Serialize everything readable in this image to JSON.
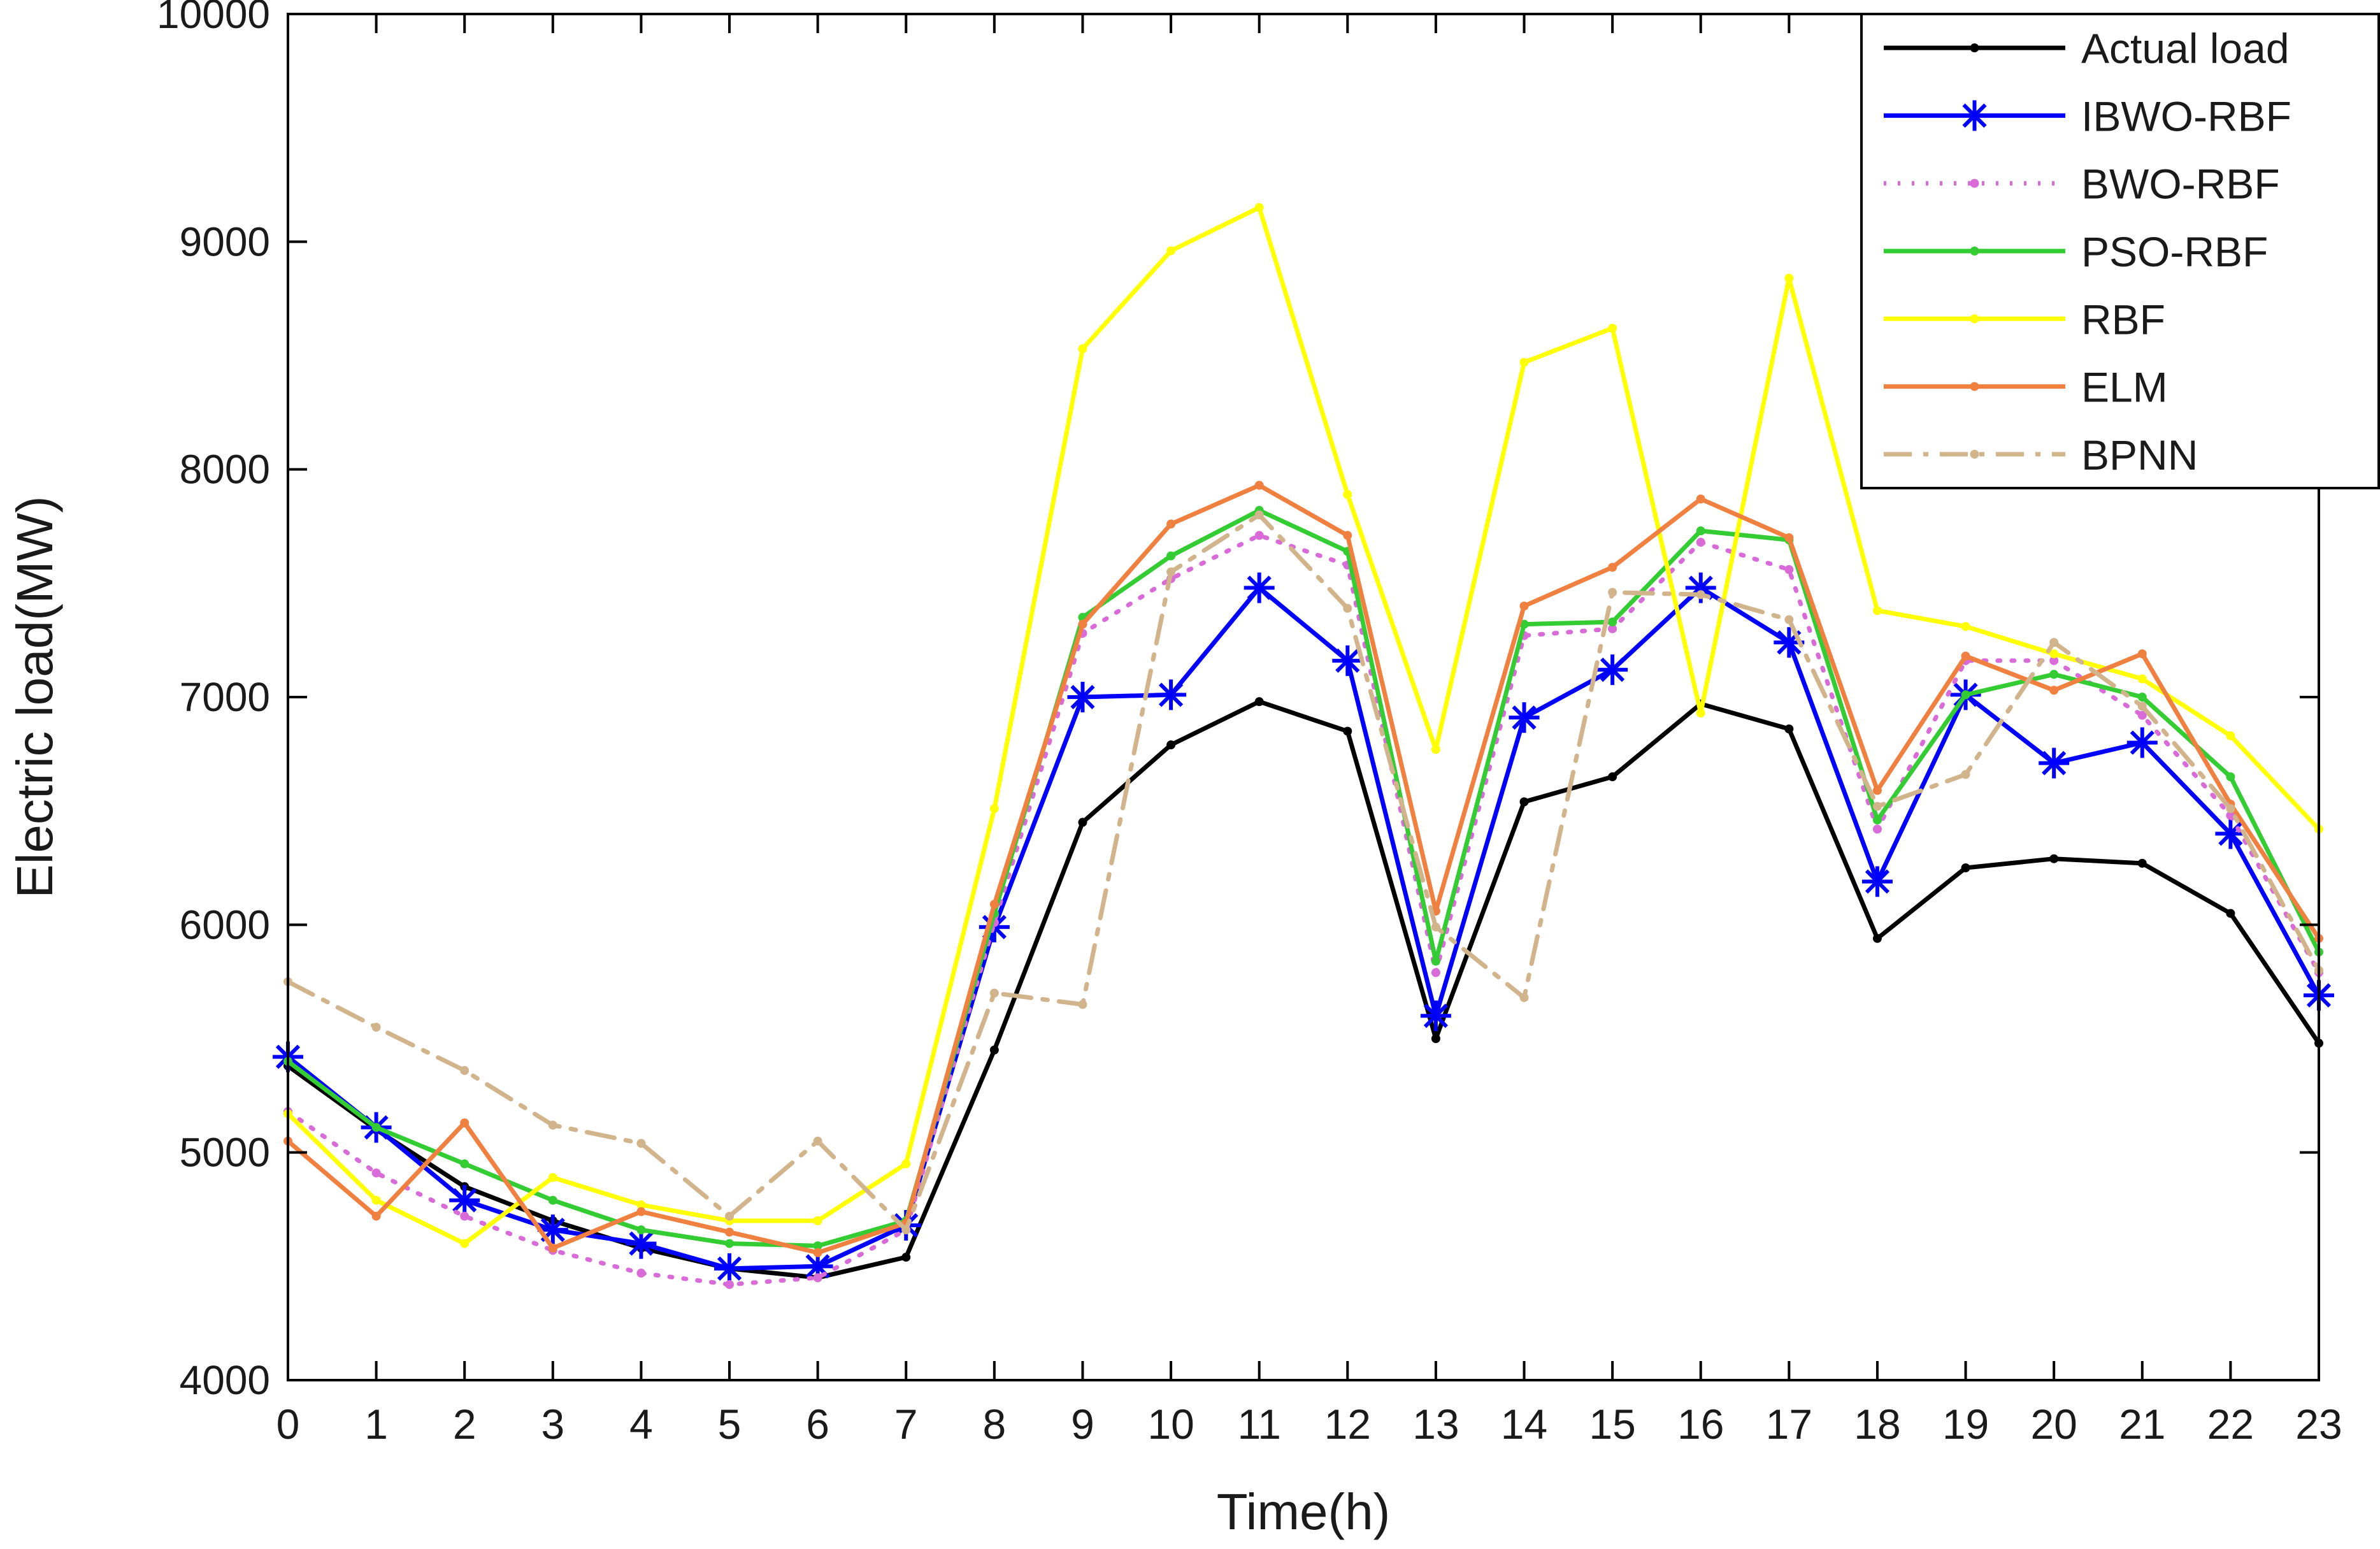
{
  "chart_data": {
    "type": "line",
    "xlabel": "Time(h)",
    "ylabel": "Electric load(MW)",
    "xlim": [
      0,
      23
    ],
    "ylim": [
      4000,
      10000
    ],
    "yticks": [
      4000,
      5000,
      6000,
      7000,
      8000,
      9000,
      10000
    ],
    "ytick_labels": [
      "4000",
      "5000",
      "6000",
      "7000",
      "8000",
      "9000",
      "10000"
    ],
    "x": [
      0,
      1,
      2,
      3,
      4,
      5,
      6,
      7,
      8,
      9,
      10,
      11,
      12,
      13,
      14,
      15,
      16,
      17,
      18,
      19,
      20,
      21,
      22,
      23
    ],
    "xtick_labels": [
      "0",
      "1",
      "2",
      "3",
      "4",
      "5",
      "6",
      "7",
      "8",
      "9",
      "10",
      "11",
      "12",
      "13",
      "14",
      "15",
      "16",
      "17",
      "18",
      "19",
      "20",
      "21",
      "22",
      "23"
    ],
    "legend_position": "top-right",
    "grid": false,
    "series": [
      {
        "name": "Actual load",
        "color": "#000000",
        "style": "solid",
        "marker": "dot",
        "values": [
          5380,
          5100,
          4850,
          4700,
          4580,
          4490,
          4450,
          4540,
          5450,
          6450,
          6790,
          6980,
          6850,
          5500,
          6540,
          6650,
          6970,
          6860,
          5940,
          6250,
          6290,
          6270,
          6050,
          5480
        ]
      },
      {
        "name": "IBWO-RBF",
        "color": "#0000ff",
        "style": "solid",
        "marker": "asterisk",
        "values": [
          5420,
          5110,
          4790,
          4660,
          4600,
          4490,
          4500,
          4680,
          5990,
          7000,
          7010,
          7480,
          7160,
          5600,
          6910,
          7120,
          7480,
          7240,
          6190,
          7010,
          6710,
          6800,
          6400,
          5690
        ]
      },
      {
        "name": "BWO-RBF",
        "color": "#d86bd8",
        "style": "dotted",
        "marker": "dot",
        "values": [
          5180,
          4910,
          4720,
          4570,
          4470,
          4420,
          4450,
          4660,
          6010,
          7280,
          7520,
          7710,
          7580,
          5790,
          7270,
          7300,
          7680,
          7560,
          6420,
          7160,
          7160,
          6920,
          6480,
          5790
        ]
      },
      {
        "name": "PSO-RBF",
        "color": "#33cc33",
        "style": "solid",
        "marker": "dot",
        "values": [
          5400,
          5110,
          4950,
          4790,
          4660,
          4600,
          4590,
          4700,
          6050,
          7350,
          7620,
          7820,
          7640,
          5840,
          7320,
          7330,
          7730,
          7690,
          6460,
          7010,
          7100,
          7000,
          6650,
          5880
        ]
      },
      {
        "name": "RBF",
        "color": "#ffff00",
        "style": "solid",
        "marker": "dot",
        "values": [
          5170,
          4790,
          4600,
          4890,
          4770,
          4700,
          4700,
          4950,
          6510,
          8530,
          8960,
          9150,
          7890,
          6770,
          8470,
          8620,
          6930,
          8840,
          7380,
          7310,
          7190,
          7080,
          6830,
          6420
        ]
      },
      {
        "name": "ELM",
        "color": "#f08040",
        "style": "solid",
        "marker": "dot",
        "values": [
          5050,
          4720,
          5130,
          4580,
          4740,
          4650,
          4560,
          4690,
          6090,
          7320,
          7760,
          7930,
          7710,
          6060,
          7400,
          7570,
          7870,
          7700,
          6590,
          7180,
          7030,
          7190,
          6530,
          5940
        ]
      },
      {
        "name": "BPNN",
        "color": "#d2b48c",
        "style": "dashdot",
        "marker": "dot",
        "values": [
          5750,
          5550,
          5360,
          5120,
          5040,
          4720,
          5050,
          4660,
          5700,
          5650,
          7550,
          7800,
          7390,
          5990,
          5680,
          7460,
          7450,
          7340,
          6520,
          6660,
          7240,
          6960,
          6510,
          5800
        ]
      }
    ]
  }
}
